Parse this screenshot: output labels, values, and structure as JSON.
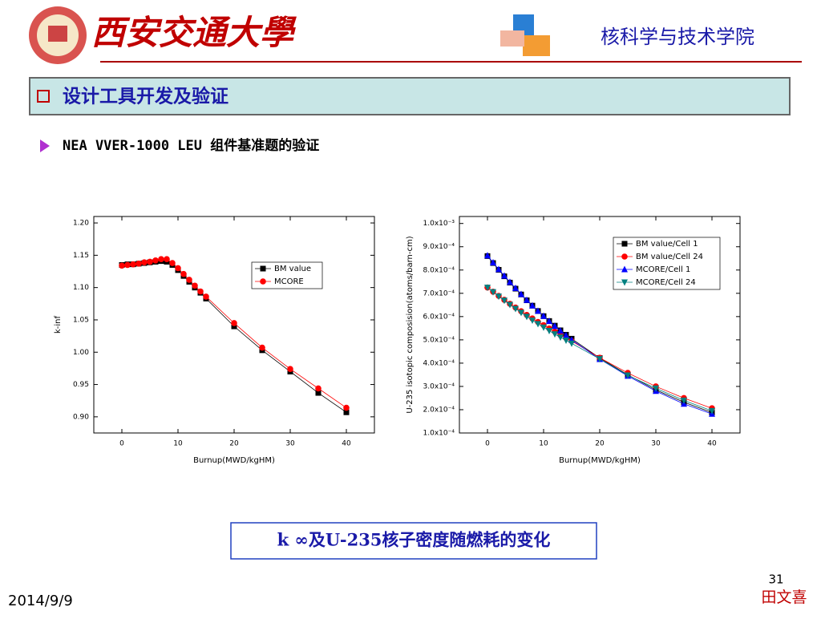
{
  "header": {
    "logo_text": "西安交通大學",
    "school": "核科学与技术学院"
  },
  "section_title": "设计工具开发及验证",
  "bullet": "NEA VVER-1000 LEU 组件基准题的验证",
  "caption": "k ∞及U-235核子密度随燃耗的变化",
  "page_number": "31",
  "author": "田文喜",
  "date": "2014/9/9",
  "chart_data": [
    {
      "type": "line",
      "x_label": "Burnup(MWD/kgHM)",
      "y_label": "k-inf",
      "x": [
        0,
        1,
        2,
        3,
        4,
        5,
        6,
        7,
        8,
        9,
        10,
        11,
        12,
        13,
        14,
        15,
        20,
        25,
        30,
        35,
        40
      ],
      "xlim": [
        -5,
        45
      ],
      "xticks": [
        0,
        10,
        20,
        30,
        40
      ],
      "ylim": [
        0.875,
        1.21
      ],
      "yticks": [
        {
          "value": 0.9,
          "label": "0.90"
        },
        {
          "value": 0.95,
          "label": "0.95"
        },
        {
          "value": 1.0,
          "label": "1.00"
        },
        {
          "value": 1.05,
          "label": "1.05"
        },
        {
          "value": 1.1,
          "label": "1.10"
        },
        {
          "value": 1.15,
          "label": "1.15"
        },
        {
          "value": 1.2,
          "label": "1.20"
        }
      ],
      "series": [
        {
          "name": "BM value",
          "color": "#000000",
          "marker": "square",
          "values": [
            1.135,
            1.136,
            1.136,
            1.137,
            1.138,
            1.139,
            1.14,
            1.141,
            1.14,
            1.135,
            1.127,
            1.118,
            1.109,
            1.1,
            1.092,
            1.083,
            1.04,
            1.003,
            0.97,
            0.937,
            0.907
          ]
        },
        {
          "name": "MCORE",
          "color": "#ff0000",
          "marker": "circle",
          "values": [
            1.134,
            1.135,
            1.136,
            1.137,
            1.139,
            1.14,
            1.142,
            1.144,
            1.144,
            1.138,
            1.13,
            1.121,
            1.112,
            1.103,
            1.094,
            1.086,
            1.045,
            1.007,
            0.974,
            0.944,
            0.914
          ]
        }
      ]
    },
    {
      "type": "line",
      "x_label": "Burnup(MWD/kgHM)",
      "y_label": "U-235 isotopic composision(atoms/barn-cm)",
      "x": [
        0,
        1,
        2,
        3,
        4,
        5,
        6,
        7,
        8,
        9,
        10,
        11,
        12,
        13,
        14,
        15,
        20,
        25,
        30,
        35,
        40
      ],
      "xlim": [
        -5,
        45
      ],
      "xticks": [
        0,
        10,
        20,
        30,
        40
      ],
      "ylim": [
        0.0001,
        0.00103
      ],
      "yticks": [
        {
          "value": 0.0001,
          "label": "1.0x10⁻⁴"
        },
        {
          "value": 0.0002,
          "label": "2.0x10⁻⁴"
        },
        {
          "value": 0.0003,
          "label": "3.0x10⁻⁴"
        },
        {
          "value": 0.0004,
          "label": "4.0x10⁻⁴"
        },
        {
          "value": 0.0005,
          "label": "5.0x10⁻⁴"
        },
        {
          "value": 0.0006,
          "label": "6.0x10⁻⁴"
        },
        {
          "value": 0.0007,
          "label": "7.0x10⁻⁴"
        },
        {
          "value": 0.0008,
          "label": "8.0x10⁻⁴"
        },
        {
          "value": 0.0009,
          "label": "9.0x10⁻⁴"
        },
        {
          "value": 0.001,
          "label": "1.0x10⁻³"
        }
      ],
      "series": [
        {
          "name": "BM value/Cell 1",
          "color": "#000000",
          "marker": "square",
          "values": [
            0.00086,
            0.00083,
            0.000801,
            0.000773,
            0.000746,
            0.00072,
            0.000695,
            0.00067,
            0.000647,
            0.000624,
            0.000602,
            0.000581,
            0.000561,
            0.000541,
            0.000522,
            0.000505,
            0.000422,
            0.00035,
            0.000285,
            0.000232,
            0.000188
          ]
        },
        {
          "name": "BM value/Cell 24",
          "color": "#ff0000",
          "marker": "circle",
          "values": [
            0.000725,
            0.000707,
            0.000689,
            0.000672,
            0.000655,
            0.000639,
            0.000623,
            0.000607,
            0.000592,
            0.000577,
            0.000563,
            0.000549,
            0.000535,
            0.000521,
            0.000508,
            0.000495,
            0.000423,
            0.000358,
            0.0003,
            0.00025,
            0.000206
          ]
        },
        {
          "name": "MCORE/Cell 1",
          "color": "#0000ff",
          "marker": "triangle",
          "values": [
            0.000862,
            0.000832,
            0.000803,
            0.000775,
            0.000748,
            0.000722,
            0.000696,
            0.000671,
            0.000647,
            0.000624,
            0.000602,
            0.00058,
            0.000559,
            0.000539,
            0.000519,
            0.0005,
            0.000417,
            0.000345,
            0.00028,
            0.000225,
            0.000182
          ]
        },
        {
          "name": "MCORE/Cell 24",
          "color": "#008080",
          "marker": "triangle-down",
          "values": [
            0.000725,
            0.000706,
            0.000687,
            0.000669,
            0.000651,
            0.000634,
            0.000617,
            0.0006,
            0.000584,
            0.000569,
            0.000554,
            0.000539,
            0.000525,
            0.000511,
            0.000498,
            0.000485,
            0.000418,
            0.000348,
            0.000292,
            0.00024,
            0.000195
          ]
        }
      ]
    }
  ]
}
